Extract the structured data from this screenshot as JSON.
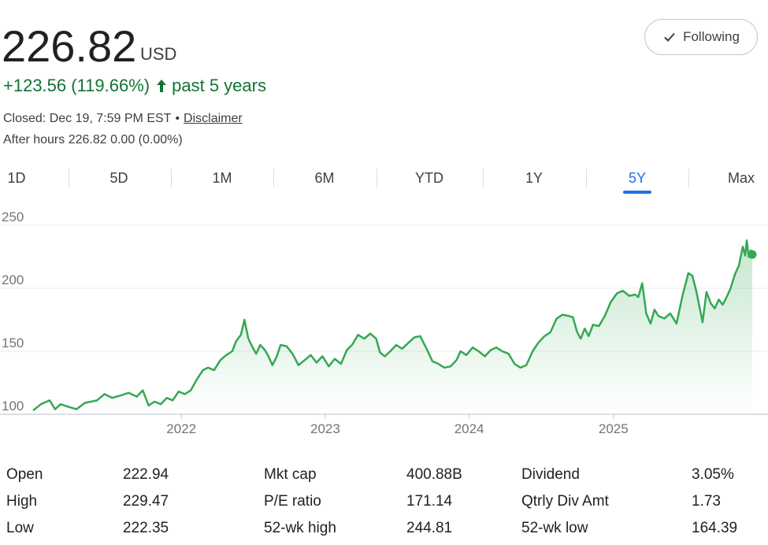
{
  "quote": {
    "price": "226.82",
    "currency": "USD",
    "change": "+123.56 (119.66%)",
    "period": "past 5 years",
    "closed_label": "Closed: Dec 19, 7:59 PM EST",
    "separator": "•",
    "disclaimer": "Disclaimer",
    "after_hours": "After hours 226.82 0.00 (0.00%)"
  },
  "follow_button": {
    "label": "Following",
    "icon": "check-icon"
  },
  "tabs": [
    {
      "label": "1D"
    },
    {
      "label": "5D"
    },
    {
      "label": "1M"
    },
    {
      "label": "6M"
    },
    {
      "label": "YTD"
    },
    {
      "label": "1Y"
    },
    {
      "label": "5Y",
      "active": true
    },
    {
      "label": "Max"
    }
  ],
  "colors": {
    "up": "#137333",
    "line": "#34a853",
    "accent": "#1a73e8"
  },
  "chart_data": {
    "type": "area",
    "y_ticks": [
      100,
      150,
      200,
      250
    ],
    "x_ticks": [
      "2022",
      "2023",
      "2024",
      "2025"
    ],
    "ylim": [
      100,
      250
    ],
    "xlim": [
      "2020-12-21",
      "2025-12-19"
    ],
    "grid": true,
    "series": [
      {
        "points": [
          [
            "2020-12-21",
            103
          ],
          [
            "2021-01-10",
            108
          ],
          [
            "2021-02-01",
            111
          ],
          [
            "2021-02-15",
            104
          ],
          [
            "2021-03-01",
            108
          ],
          [
            "2021-03-20",
            106
          ],
          [
            "2021-04-10",
            104
          ],
          [
            "2021-05-01",
            109
          ],
          [
            "2021-06-01",
            111
          ],
          [
            "2021-06-20",
            116
          ],
          [
            "2021-07-10",
            113
          ],
          [
            "2021-08-01",
            115
          ],
          [
            "2021-08-20",
            117
          ],
          [
            "2021-09-10",
            114
          ],
          [
            "2021-09-25",
            119
          ],
          [
            "2021-10-10",
            107
          ],
          [
            "2021-10-25",
            110
          ],
          [
            "2021-11-10",
            108
          ],
          [
            "2021-11-25",
            113
          ],
          [
            "2021-12-10",
            111
          ],
          [
            "2021-12-25",
            118
          ],
          [
            "2022-01-10",
            116
          ],
          [
            "2022-01-25",
            119
          ],
          [
            "2022-02-10",
            128
          ],
          [
            "2022-02-25",
            135
          ],
          [
            "2022-03-10",
            137
          ],
          [
            "2022-03-25",
            135
          ],
          [
            "2022-04-10",
            143
          ],
          [
            "2022-04-25",
            147
          ],
          [
            "2022-05-10",
            150
          ],
          [
            "2022-05-20",
            158
          ],
          [
            "2022-06-01",
            163
          ],
          [
            "2022-06-10",
            175
          ],
          [
            "2022-06-20",
            160
          ],
          [
            "2022-07-01",
            153
          ],
          [
            "2022-07-10",
            148
          ],
          [
            "2022-07-20",
            155
          ],
          [
            "2022-08-01",
            151
          ],
          [
            "2022-08-10",
            146
          ],
          [
            "2022-08-20",
            139
          ],
          [
            "2022-08-30",
            145
          ],
          [
            "2022-09-10",
            155
          ],
          [
            "2022-09-25",
            154
          ],
          [
            "2022-10-10",
            148
          ],
          [
            "2022-10-25",
            139
          ],
          [
            "2022-11-10",
            143
          ],
          [
            "2022-11-25",
            147
          ],
          [
            "2022-12-10",
            141
          ],
          [
            "2022-12-25",
            146
          ],
          [
            "2023-01-10",
            138
          ],
          [
            "2023-01-25",
            144
          ],
          [
            "2023-02-10",
            140
          ],
          [
            "2023-02-25",
            151
          ],
          [
            "2023-03-10",
            155
          ],
          [
            "2023-03-25",
            163
          ],
          [
            "2023-04-10",
            160
          ],
          [
            "2023-04-25",
            164
          ],
          [
            "2023-05-10",
            160
          ],
          [
            "2023-05-20",
            149
          ],
          [
            "2023-06-01",
            146
          ],
          [
            "2023-06-15",
            150
          ],
          [
            "2023-06-30",
            155
          ],
          [
            "2023-07-15",
            152
          ],
          [
            "2023-08-01",
            157
          ],
          [
            "2023-08-15",
            161
          ],
          [
            "2023-08-30",
            162
          ],
          [
            "2023-09-15",
            152
          ],
          [
            "2023-09-30",
            142
          ],
          [
            "2023-10-15",
            140
          ],
          [
            "2023-10-30",
            137
          ],
          [
            "2023-11-15",
            138
          ],
          [
            "2023-11-30",
            143
          ],
          [
            "2023-12-10",
            150
          ],
          [
            "2023-12-25",
            147
          ],
          [
            "2024-01-10",
            153
          ],
          [
            "2024-01-25",
            150
          ],
          [
            "2024-02-10",
            146
          ],
          [
            "2024-02-25",
            151
          ],
          [
            "2024-03-10",
            153
          ],
          [
            "2024-03-25",
            150
          ],
          [
            "2024-04-10",
            148
          ],
          [
            "2024-04-25",
            140
          ],
          [
            "2024-05-10",
            137
          ],
          [
            "2024-05-25",
            139
          ],
          [
            "2024-06-10",
            150
          ],
          [
            "2024-06-25",
            157
          ],
          [
            "2024-07-10",
            162
          ],
          [
            "2024-07-25",
            165
          ],
          [
            "2024-08-10",
            176
          ],
          [
            "2024-08-25",
            179
          ],
          [
            "2024-09-10",
            178
          ],
          [
            "2024-09-20",
            177
          ],
          [
            "2024-10-01",
            165
          ],
          [
            "2024-10-10",
            160
          ],
          [
            "2024-10-20",
            168
          ],
          [
            "2024-10-30",
            162
          ],
          [
            "2024-11-10",
            171
          ],
          [
            "2024-11-25",
            170
          ],
          [
            "2024-12-10",
            178
          ],
          [
            "2024-12-25",
            189
          ],
          [
            "2025-01-10",
            196
          ],
          [
            "2025-01-25",
            198
          ],
          [
            "2025-02-10",
            194
          ],
          [
            "2025-02-25",
            195
          ],
          [
            "2025-03-05",
            193
          ],
          [
            "2025-03-15",
            204
          ],
          [
            "2025-03-25",
            180
          ],
          [
            "2025-04-05",
            172
          ],
          [
            "2025-04-15",
            183
          ],
          [
            "2025-04-25",
            178
          ],
          [
            "2025-05-10",
            176
          ],
          [
            "2025-05-25",
            180
          ],
          [
            "2025-06-10",
            172
          ],
          [
            "2025-06-25",
            194
          ],
          [
            "2025-07-10",
            212
          ],
          [
            "2025-07-20",
            210
          ],
          [
            "2025-07-30",
            198
          ],
          [
            "2025-08-10",
            181
          ],
          [
            "2025-08-15",
            173
          ],
          [
            "2025-08-25",
            197
          ],
          [
            "2025-09-05",
            188
          ],
          [
            "2025-09-15",
            184
          ],
          [
            "2025-09-25",
            191
          ],
          [
            "2025-10-05",
            187
          ],
          [
            "2025-10-15",
            193
          ],
          [
            "2025-10-25",
            200
          ],
          [
            "2025-11-05",
            211
          ],
          [
            "2025-11-15",
            218
          ],
          [
            "2025-11-25",
            233
          ],
          [
            "2025-12-01",
            226
          ],
          [
            "2025-12-05",
            238
          ],
          [
            "2025-12-10",
            225
          ],
          [
            "2025-12-15",
            230
          ],
          [
            "2025-12-19",
            226.82
          ]
        ]
      }
    ]
  },
  "stats": {
    "rows": [
      [
        {
          "label": "Open",
          "value": "222.94"
        },
        {
          "label": "Mkt cap",
          "value": "400.88B"
        },
        {
          "label": "Dividend",
          "value": "3.05%"
        }
      ],
      [
        {
          "label": "High",
          "value": "229.47"
        },
        {
          "label": "P/E ratio",
          "value": "171.14"
        },
        {
          "label": "Qtrly Div Amt",
          "value": "1.73"
        }
      ],
      [
        {
          "label": "Low",
          "value": "222.35"
        },
        {
          "label": "52-wk high",
          "value": "244.81"
        },
        {
          "label": "52-wk low",
          "value": "164.39"
        }
      ]
    ]
  }
}
